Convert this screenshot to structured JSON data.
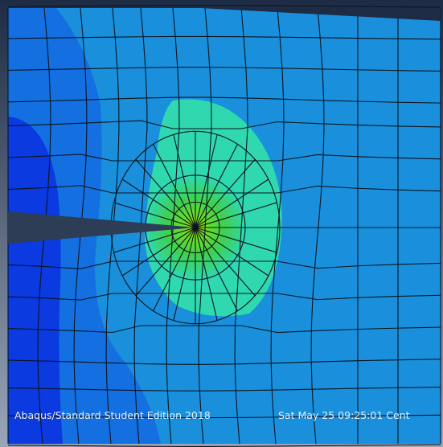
{
  "viewport": {
    "footer_left": "Abaqus/Standard Student Edition 2018",
    "footer_right": "Sat May 25 09:25:01 Cent"
  }
}
